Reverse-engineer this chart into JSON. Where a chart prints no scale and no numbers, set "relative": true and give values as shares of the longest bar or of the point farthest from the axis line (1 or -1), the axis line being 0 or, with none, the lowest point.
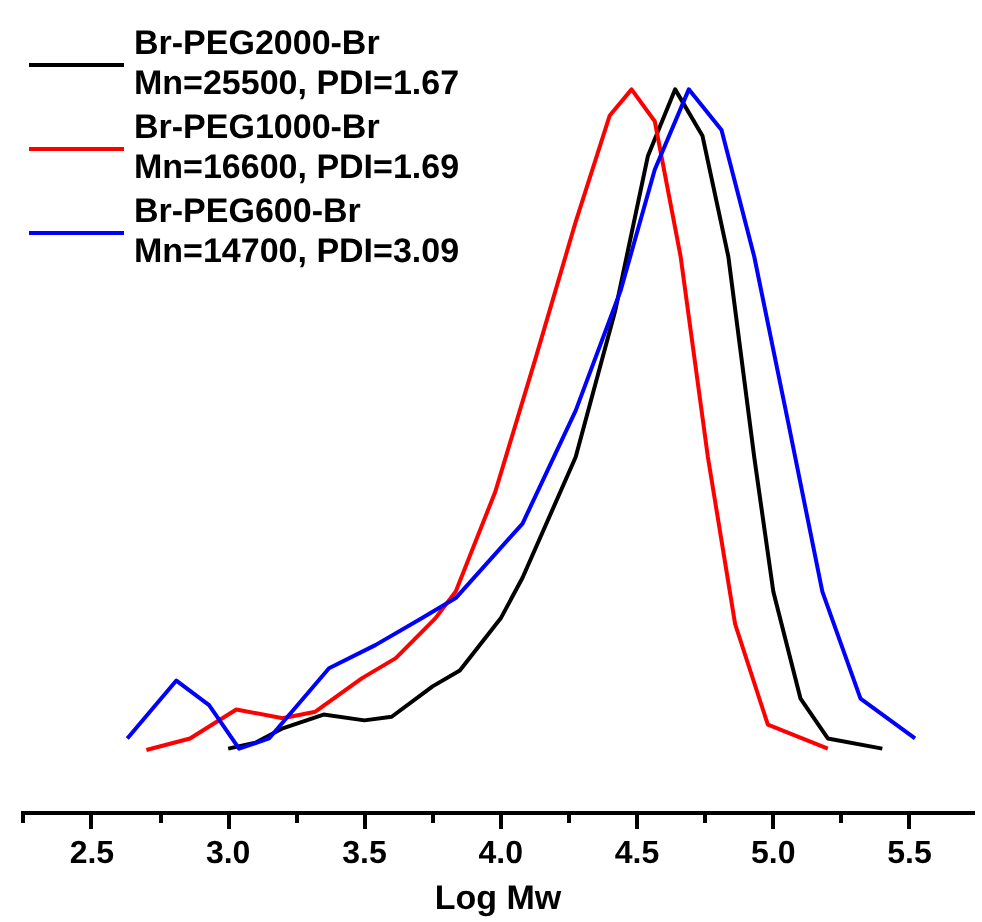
{
  "chart_data": {
    "type": "line",
    "xlabel": "Log Mw",
    "relative": true,
    "legend": "top left",
    "xlim": [
      2.24,
      5.74
    ],
    "xticks": [
      {
        "value": 2.5,
        "label": "2.5"
      },
      {
        "value": 3,
        "label": "3.0"
      },
      {
        "value": 3.5,
        "label": "3.5"
      },
      {
        "value": 4,
        "label": "4.0"
      },
      {
        "value": 4.5,
        "label": "4.5"
      },
      {
        "value": 5,
        "label": "5.0"
      },
      {
        "value": 5.5,
        "label": "5.5"
      }
    ],
    "grid": false,
    "line_style": "solid",
    "series": [
      {
        "name": "Br-PEG2000-Br\nMn=25500, PDI=1.67",
        "color": "#000000",
        "x": [
          3.0,
          3.1,
          3.2,
          3.35,
          3.5,
          3.6,
          3.75,
          3.85,
          4.0,
          4.08,
          4.275,
          4.42,
          4.54,
          4.64,
          4.74,
          4.835,
          4.93,
          5.0,
          5.1,
          5.2,
          5.4
        ],
        "values": [
          0.089,
          0.097,
          0.117,
          0.136,
          0.128,
          0.133,
          0.175,
          0.197,
          0.269,
          0.325,
          0.492,
          0.694,
          0.908,
          1.0,
          0.936,
          0.769,
          0.492,
          0.306,
          0.158,
          0.103,
          0.089
        ]
      },
      {
        "name": "Br-PEG1000-Br\nMn=16600, PDI=1.69",
        "color": "#ff0000",
        "x": [
          2.7,
          2.86,
          3.03,
          3.2,
          3.32,
          3.49,
          3.615,
          3.76,
          3.835,
          3.98,
          4.13,
          4.275,
          4.4,
          4.48,
          4.565,
          4.66,
          4.76,
          4.86,
          4.98,
          5.2
        ],
        "values": [
          0.087,
          0.103,
          0.143,
          0.131,
          0.14,
          0.186,
          0.214,
          0.269,
          0.306,
          0.444,
          0.631,
          0.817,
          0.964,
          1.0,
          0.956,
          0.769,
          0.492,
          0.261,
          0.122,
          0.089
        ]
      },
      {
        "name": "Br-PEG600-Br\nMn=14700, PDI=3.09",
        "color": "#0000ff",
        "x": [
          2.63,
          2.81,
          2.93,
          3.04,
          3.15,
          3.37,
          3.54,
          3.71,
          3.835,
          4.08,
          4.275,
          4.44,
          4.565,
          4.69,
          4.81,
          4.93,
          5.055,
          5.18,
          5.32,
          5.52
        ],
        "values": [
          0.103,
          0.183,
          0.149,
          0.089,
          0.103,
          0.2,
          0.232,
          0.269,
          0.297,
          0.4,
          0.556,
          0.722,
          0.889,
          1.0,
          0.944,
          0.769,
          0.539,
          0.306,
          0.158,
          0.103
        ]
      }
    ]
  }
}
